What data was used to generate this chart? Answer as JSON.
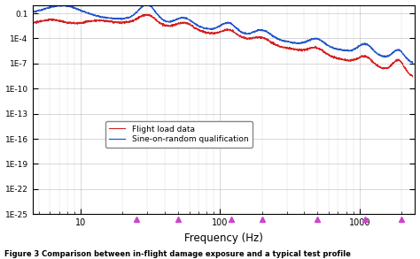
{
  "title": "",
  "xlabel": "Frequency (Hz)",
  "ylabel": "",
  "caption": "Figure 3 Comparison between in-flight damage exposure and a typical test profile",
  "xlim": [
    4.5,
    2500
  ],
  "ylim": [
    1e-25,
    1.0
  ],
  "ytick_labels": [
    "1E-25",
    "1E-22",
    "1E-19",
    "1E-16",
    "1E-13",
    "1E-10",
    "1E-7",
    "1E-4",
    "0.1"
  ],
  "ytick_exponents": [
    -25,
    -22,
    -19,
    -16,
    -13,
    -10,
    -7,
    -4,
    -1
  ],
  "legend_labels": [
    "Flight load data",
    "Sine-on-random qualification"
  ],
  "line_colors": [
    "#d42020",
    "#2255cc"
  ],
  "triangle_x": [
    25,
    50,
    120,
    200,
    500,
    1100,
    2000
  ],
  "triangle_color": "#cc44cc",
  "bg_color": "#ffffff",
  "grid_color": "#bbbbbb",
  "figsize": [
    4.74,
    2.93
  ],
  "dpi": 100
}
